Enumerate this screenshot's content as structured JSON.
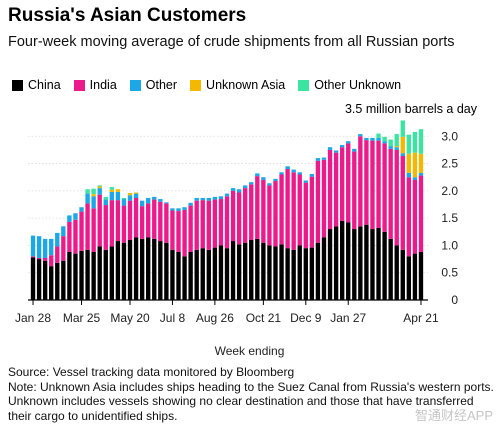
{
  "header": {
    "title": "Russia's Asian Customers",
    "subtitle": "Four-week moving average of crude shipments from all Russian ports"
  },
  "legend": [
    {
      "label": "China",
      "color": "#000000"
    },
    {
      "label": "India",
      "color": "#ec1b8b"
    },
    {
      "label": "Other",
      "color": "#1ba7e8"
    },
    {
      "label": "Unknown Asia",
      "color": "#f5b800"
    },
    {
      "label": "Other Unknown",
      "color": "#3ae5a2"
    }
  ],
  "footer": {
    "xlabel": "Week ending",
    "source": "Source: Vessel tracking data monitored by Bloomberg",
    "note": "Note: Unknown Asia includes ships heading to the Suez Canal from Russia's western ports. Unknown includes vessels showing no clear destination and those that have transferred their cargo to unidentified ships."
  },
  "watermark": "智通财经APP",
  "chart_data": {
    "type": "bar",
    "stacked": true,
    "unit_label": "3.5 million barrels a day",
    "ylim": [
      0,
      3.5
    ],
    "yticks": [
      "0",
      "0.5",
      "1.0",
      "1.5",
      "2.0",
      "2.5",
      "3.0"
    ],
    "ytick_values": [
      0,
      0.5,
      1.0,
      1.5,
      2.0,
      2.5,
      3.0
    ],
    "xticks": [
      {
        "label": "Jan 28",
        "index": 0
      },
      {
        "label": "Mar 25",
        "index": 8
      },
      {
        "label": "May 20",
        "index": 16
      },
      {
        "label": "Jul 8",
        "index": 23
      },
      {
        "label": "Aug 26",
        "index": 30
      },
      {
        "label": "Oct 21",
        "index": 38
      },
      {
        "label": "Dec 9",
        "index": 45
      },
      {
        "label": "Jan 27",
        "index": 52
      },
      {
        "label": "Apr 21",
        "index": 64
      }
    ],
    "grid": true,
    "legend_position": "top-left",
    "series": [
      {
        "name": "China",
        "color": "#000000",
        "values": [
          0.78,
          0.75,
          0.72,
          0.62,
          0.68,
          0.72,
          0.88,
          0.85,
          0.9,
          0.92,
          0.88,
          0.98,
          0.92,
          0.98,
          1.08,
          1.05,
          1.1,
          1.15,
          1.12,
          1.15,
          1.12,
          1.08,
          1.05,
          0.92,
          0.88,
          0.8,
          0.88,
          0.92,
          0.95,
          0.92,
          0.96,
          1.0,
          0.95,
          1.08,
          1.02,
          1.05,
          1.1,
          1.12,
          1.05,
          1.0,
          0.98,
          1.02,
          0.95,
          0.92,
          1.0,
          0.95,
          0.96,
          1.05,
          1.15,
          1.3,
          1.35,
          1.45,
          1.42,
          1.3,
          1.35,
          1.38,
          1.3,
          1.32,
          1.25,
          1.12,
          1.0,
          0.92,
          0.8,
          0.85,
          0.88
        ]
      },
      {
        "name": "India",
        "color": "#ec1b8b",
        "values": [
          0.02,
          0.02,
          0.05,
          0.2,
          0.3,
          0.45,
          0.55,
          0.62,
          0.72,
          0.85,
          0.8,
          0.95,
          0.82,
          0.85,
          0.75,
          0.68,
          0.72,
          0.72,
          0.6,
          0.62,
          0.72,
          0.72,
          0.72,
          0.72,
          0.75,
          0.85,
          0.85,
          0.9,
          0.88,
          0.9,
          0.88,
          0.85,
          0.95,
          0.92,
          0.95,
          1.0,
          1.02,
          1.15,
          1.15,
          1.1,
          1.2,
          1.28,
          1.45,
          1.42,
          1.3,
          1.2,
          1.3,
          1.5,
          1.42,
          1.45,
          1.35,
          1.35,
          1.45,
          1.42,
          1.65,
          1.55,
          1.62,
          1.6,
          1.62,
          1.65,
          1.75,
          1.72,
          1.45,
          1.35,
          1.4
        ]
      },
      {
        "name": "Other",
        "color": "#1ba7e8",
        "values": [
          0.38,
          0.4,
          0.35,
          0.3,
          0.25,
          0.18,
          0.12,
          0.12,
          0.08,
          0.18,
          0.22,
          0.12,
          0.1,
          0.15,
          0.15,
          0.12,
          0.1,
          0.08,
          0.1,
          0.1,
          0.05,
          0.05,
          0.02,
          0.04,
          0.05,
          0.05,
          0.05,
          0.05,
          0.04,
          0.05,
          0.05,
          0.05,
          0.05,
          0.05,
          0.06,
          0.05,
          0.04,
          0.05,
          0.05,
          0.04,
          0.04,
          0.04,
          0.05,
          0.05,
          0.04,
          0.04,
          0.05,
          0.05,
          0.04,
          0.05,
          0.04,
          0.04,
          0.04,
          0.05,
          0.04,
          0.04,
          0.05,
          0.05,
          0.04,
          0.05,
          0.05,
          0.05,
          0.08,
          0.05,
          0.05
        ]
      },
      {
        "name": "Unknown Asia",
        "color": "#f5b800",
        "values": [
          0,
          0,
          0,
          0,
          0,
          0,
          0,
          0,
          0,
          0,
          0.04,
          0.03,
          0,
          0.04,
          0.05,
          0,
          0.04,
          0.02,
          0,
          0,
          0,
          0,
          0,
          0,
          0,
          0,
          0,
          0,
          0,
          0,
          0,
          0,
          0,
          0,
          0,
          0,
          0,
          0,
          0,
          0,
          0,
          0,
          0,
          0,
          0,
          0,
          0,
          0,
          0,
          0,
          0,
          0,
          0,
          0,
          0,
          0,
          0,
          0,
          0,
          0,
          0.02,
          0.3,
          0.35,
          0.45,
          0.35
        ]
      },
      {
        "name": "Other Unknown",
        "color": "#3ae5a2",
        "values": [
          0,
          0,
          0,
          0,
          0,
          0,
          0,
          0,
          0,
          0.08,
          0.1,
          0.02,
          0.05,
          0.05,
          0,
          0.02,
          0,
          0,
          0,
          0,
          0,
          0,
          0,
          0,
          0,
          0,
          0,
          0,
          0,
          0,
          0,
          0,
          0,
          0,
          0,
          0,
          0,
          0,
          0,
          0,
          0,
          0,
          0,
          0,
          0,
          0,
          0,
          0,
          0,
          0,
          0,
          0,
          0,
          0,
          0,
          0,
          0,
          0.08,
          0.08,
          0.12,
          0.22,
          0.3,
          0.35,
          0.38,
          0.45
        ]
      }
    ]
  }
}
